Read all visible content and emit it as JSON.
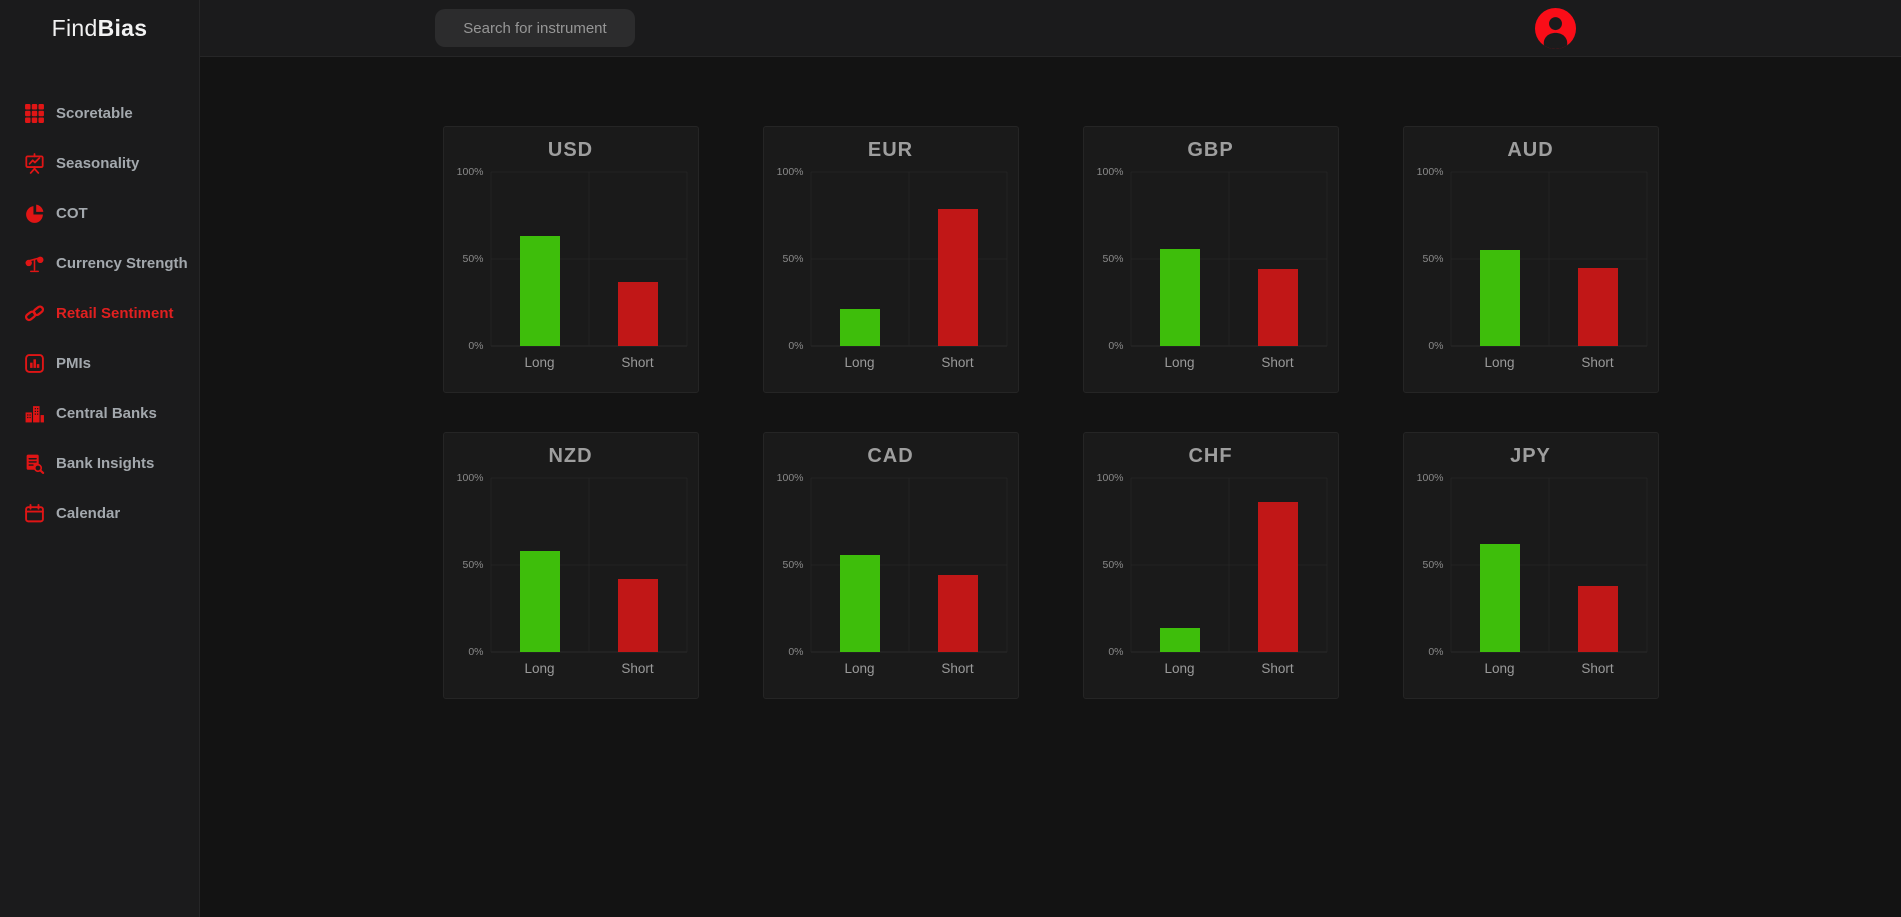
{
  "brand": {
    "first": "Find",
    "second": "Bias"
  },
  "topbar": {
    "search_placeholder": "Search for instrument"
  },
  "sidebar": {
    "items": [
      {
        "label": "Scoretable",
        "icon": "grid-icon",
        "active": false
      },
      {
        "label": "Seasonality",
        "icon": "presentation-chart-icon",
        "active": false
      },
      {
        "label": "COT",
        "icon": "pie-chart-icon",
        "active": false
      },
      {
        "label": "Currency Strength",
        "icon": "balance-scale-icon",
        "active": false
      },
      {
        "label": "Retail Sentiment",
        "icon": "chain-link-icon",
        "active": true
      },
      {
        "label": "PMIs",
        "icon": "bar-chart-square-icon",
        "active": false
      },
      {
        "label": "Central Banks",
        "icon": "bank-buildings-icon",
        "active": false
      },
      {
        "label": "Bank Insights",
        "icon": "document-search-icon",
        "active": false
      },
      {
        "label": "Calendar",
        "icon": "calendar-icon",
        "active": false
      }
    ]
  },
  "colors": {
    "accent_red": "#e01515",
    "active_text_red": "#e02020",
    "avatar_red": "#fa0d18",
    "bar_green": "#3ebe0b",
    "bar_red": "#c11717"
  },
  "chart_data": [
    {
      "type": "bar",
      "title": "USD",
      "categories": [
        "Long",
        "Short"
      ],
      "values": [
        63,
        37
      ],
      "bar_colors": [
        "#3ebe0b",
        "#c11717"
      ],
      "ylim": [
        0,
        100
      ],
      "ytick_labels": [
        "100%",
        "50%",
        "0%"
      ],
      "grid": true
    },
    {
      "type": "bar",
      "title": "EUR",
      "categories": [
        "Long",
        "Short"
      ],
      "values": [
        21,
        79
      ],
      "bar_colors": [
        "#3ebe0b",
        "#c11717"
      ],
      "ylim": [
        0,
        100
      ],
      "ytick_labels": [
        "100%",
        "50%",
        "0%"
      ],
      "grid": true
    },
    {
      "type": "bar",
      "title": "GBP",
      "categories": [
        "Long",
        "Short"
      ],
      "values": [
        56,
        44
      ],
      "bar_colors": [
        "#3ebe0b",
        "#c11717"
      ],
      "ylim": [
        0,
        100
      ],
      "ytick_labels": [
        "100%",
        "50%",
        "0%"
      ],
      "grid": true
    },
    {
      "type": "bar",
      "title": "AUD",
      "categories": [
        "Long",
        "Short"
      ],
      "values": [
        55,
        45
      ],
      "bar_colors": [
        "#3ebe0b",
        "#c11717"
      ],
      "ylim": [
        0,
        100
      ],
      "ytick_labels": [
        "100%",
        "50%",
        "0%"
      ],
      "grid": true
    },
    {
      "type": "bar",
      "title": "NZD",
      "categories": [
        "Long",
        "Short"
      ],
      "values": [
        58,
        42
      ],
      "bar_colors": [
        "#3ebe0b",
        "#c11717"
      ],
      "ylim": [
        0,
        100
      ],
      "ytick_labels": [
        "100%",
        "50%",
        "0%"
      ],
      "grid": true
    },
    {
      "type": "bar",
      "title": "CAD",
      "categories": [
        "Long",
        "Short"
      ],
      "values": [
        56,
        44
      ],
      "bar_colors": [
        "#3ebe0b",
        "#c11717"
      ],
      "ylim": [
        0,
        100
      ],
      "ytick_labels": [
        "100%",
        "50%",
        "0%"
      ],
      "grid": true
    },
    {
      "type": "bar",
      "title": "CHF",
      "categories": [
        "Long",
        "Short"
      ],
      "values": [
        14,
        86
      ],
      "bar_colors": [
        "#3ebe0b",
        "#c11717"
      ],
      "ylim": [
        0,
        100
      ],
      "ytick_labels": [
        "100%",
        "50%",
        "0%"
      ],
      "grid": true
    },
    {
      "type": "bar",
      "title": "JPY",
      "categories": [
        "Long",
        "Short"
      ],
      "values": [
        62,
        38
      ],
      "bar_colors": [
        "#3ebe0b",
        "#c11717"
      ],
      "ylim": [
        0,
        100
      ],
      "ytick_labels": [
        "100%",
        "50%",
        "0%"
      ],
      "grid": true
    }
  ]
}
